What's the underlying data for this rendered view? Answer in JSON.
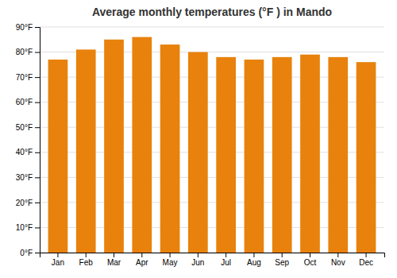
{
  "chart_data": {
    "type": "bar",
    "title": "Average monthly temperatures (°F ) in Mando",
    "categories": [
      "Jan",
      "Feb",
      "Mar",
      "Apr",
      "May",
      "Jun",
      "Jul",
      "Aug",
      "Sep",
      "Oct",
      "Nov",
      "Dec"
    ],
    "values": [
      77,
      81,
      85,
      86,
      83,
      80,
      78,
      77,
      78,
      79,
      78,
      76
    ],
    "color": "#E8820C",
    "ylim": [
      0,
      90
    ],
    "yticks": [
      {
        "value": 0,
        "label": "0°F"
      },
      {
        "value": 10,
        "label": "10°F"
      },
      {
        "value": 20,
        "label": "20°F"
      },
      {
        "value": 30,
        "label": "30°F"
      },
      {
        "value": 40,
        "label": "40°F"
      },
      {
        "value": 50,
        "label": "50°F"
      },
      {
        "value": 60,
        "label": "60°F"
      },
      {
        "value": 70,
        "label": "70°F"
      },
      {
        "value": 80,
        "label": "80°F"
      },
      {
        "value": 90,
        "label": "90°F"
      }
    ],
    "grid": true
  }
}
